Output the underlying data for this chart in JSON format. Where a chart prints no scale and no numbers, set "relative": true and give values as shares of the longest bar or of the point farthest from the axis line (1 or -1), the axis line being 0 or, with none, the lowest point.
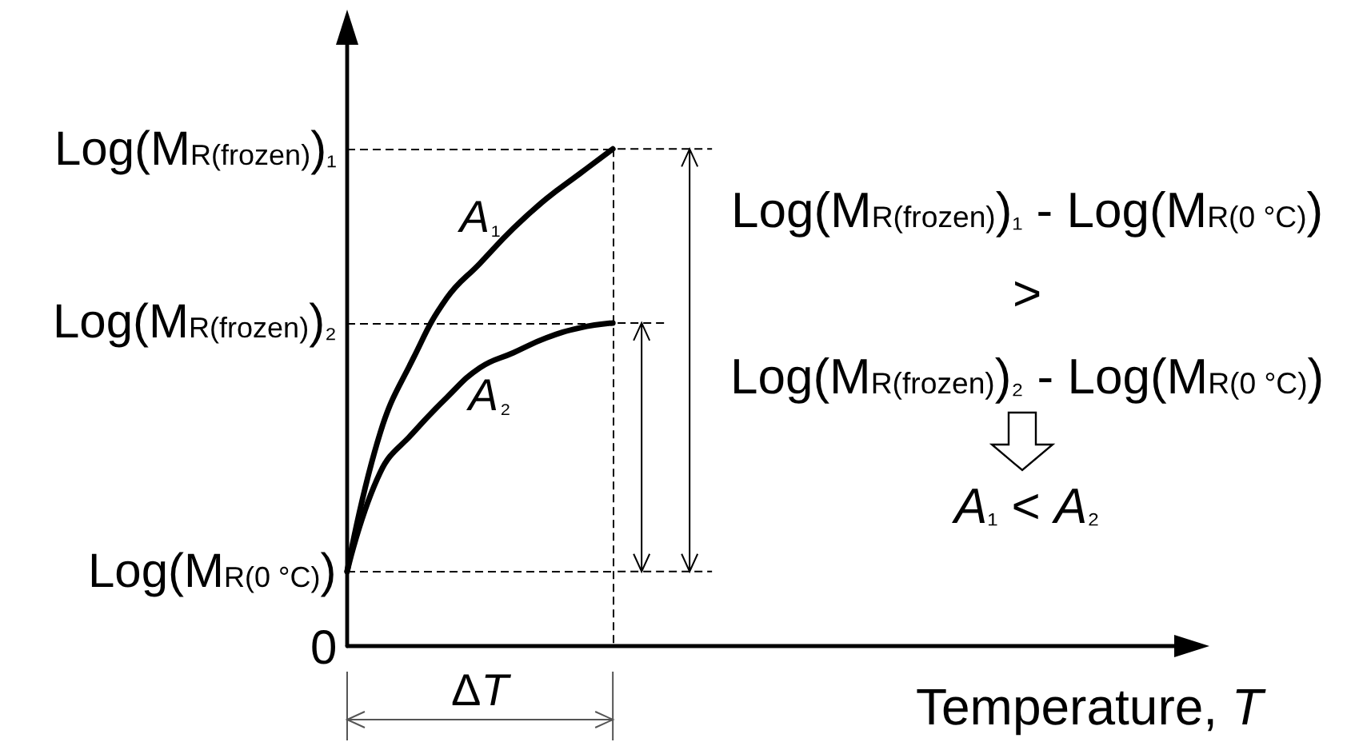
{
  "chart_data": {
    "type": "line",
    "xlabel": "Temperature, T",
    "relative": true,
    "marker": "none",
    "categories": [
      null,
      null,
      null,
      null,
      null,
      null,
      null,
      null,
      null,
      null,
      null,
      null,
      null,
      null,
      null,
      null,
      null,
      null,
      null,
      null,
      null,
      null,
      null,
      null,
      null,
      null
    ],
    "series": [
      {
        "name": "A₁",
        "color": "#000000",
        "values": [
          0.15,
          0.43,
          0.58,
          0.7,
          0.77,
          0.84,
          0.9,
          0.95,
          1,
          null,
          null,
          null,
          null,
          null,
          null,
          null,
          null,
          null,
          null,
          null,
          null,
          null,
          null,
          null,
          null,
          null
        ]
      },
      {
        "name": "A₂",
        "color": "#000000",
        "values": [
          0.15,
          0.35,
          0.43,
          0.5,
          0.56,
          0.59,
          0.62,
          0.64,
          0.65,
          null,
          null,
          null,
          null,
          null,
          null,
          null,
          null,
          null,
          null,
          null,
          null,
          null,
          null,
          null,
          null,
          null
        ]
      }
    ],
    "ref_lines": [
      {
        "axis": "y",
        "value": 1,
        "label": "Log(M$_{R(frozen)}$)₁",
        "line_style": "dashed"
      },
      {
        "axis": "y",
        "value": 0.65,
        "label": "Log(M$_{R(frozen)}$)₂",
        "line_style": "dashed"
      },
      {
        "axis": "y",
        "value": 0.15,
        "label": "Log(M$_{R(0 °C)}$)",
        "line_style": "dashed"
      }
    ],
    "annotations": [
      "0",
      "ΔT",
      "Log(M$_{R(frozen)}$)₁ - Log(M$_{R(0 °C)}$)",
      ">",
      "Log(M$_{R(frozen)}$)₂ - Log(M$_{R(0 °C)}$)",
      "A₁ < A₂"
    ]
  }
}
